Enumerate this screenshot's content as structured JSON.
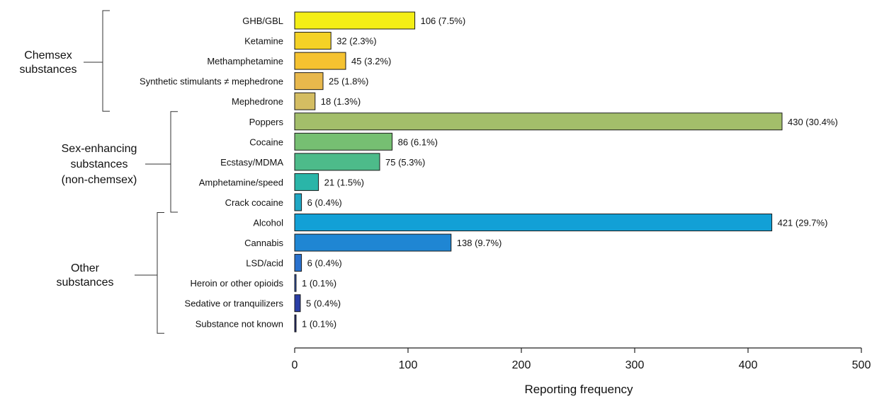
{
  "chart_data": {
    "type": "bar",
    "orientation": "horizontal",
    "xlabel": "Reporting frequency",
    "xlim": [
      0,
      500
    ],
    "xticks": [
      0,
      100,
      200,
      300,
      400,
      500
    ],
    "grid": false,
    "groups": [
      {
        "label_lines": [
          "Chemsex",
          "substances"
        ],
        "items": [
          {
            "category": "GHB/GBL",
            "value": 106,
            "label": "106 (7.5%)",
            "color": "#f4ee16"
          },
          {
            "category": "Ketamine",
            "value": 32,
            "label": "32 (2.3%)",
            "color": "#f4d226"
          },
          {
            "category": "Methamphetamine",
            "value": 45,
            "label": "45 (3.2%)",
            "color": "#f5c230"
          },
          {
            "category": "Synthetic stimulants ≠ mephedrone",
            "value": 25,
            "label": "25 (1.8%)",
            "color": "#e8b84c"
          },
          {
            "category": "Mephedrone",
            "value": 18,
            "label": "18 (1.3%)",
            "color": "#d4bd62"
          }
        ]
      },
      {
        "label_lines": [
          "Sex-enhancing",
          "substances",
          "(non-chemsex)"
        ],
        "items": [
          {
            "category": "Poppers",
            "value": 430,
            "label": "430 (30.4%)",
            "color": "#a3be6a"
          },
          {
            "category": "Cocaine",
            "value": 86,
            "label": "86 (6.1%)",
            "color": "#76bf72"
          },
          {
            "category": "Ecstasy/MDMA",
            "value": 75,
            "label": "75 (5.3%)",
            "color": "#4dbb8a"
          },
          {
            "category": "Amphetamine/speed",
            "value": 21,
            "label": "21 (1.5%)",
            "color": "#2ab5a8"
          },
          {
            "category": "Crack cocaine",
            "value": 6,
            "label": "6 (0.4%)",
            "color": "#1fa7c4"
          }
        ]
      },
      {
        "label_lines": [
          "Other",
          "substances"
        ],
        "items": [
          {
            "category": "Alcohol",
            "value": 421,
            "label": "421 (29.7%)",
            "color": "#12a0d6"
          },
          {
            "category": "Cannabis",
            "value": 138,
            "label": "138 (9.7%)",
            "color": "#1f86d3"
          },
          {
            "category": "LSD/acid",
            "value": 6,
            "label": "6 (0.4%)",
            "color": "#2a72cf"
          },
          {
            "category": "Heroin or other opioids",
            "value": 1,
            "label": "1 (0.1%)",
            "color": "#2f56b9"
          },
          {
            "category": "Sedative or tranquilizers",
            "value": 5,
            "label": "5 (0.4%)",
            "color": "#2b3ea6"
          },
          {
            "category": "Substance not known",
            "value": 1,
            "label": "1 (0.1%)",
            "color": "#23297a"
          }
        ]
      }
    ]
  }
}
